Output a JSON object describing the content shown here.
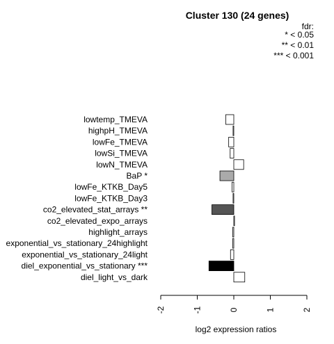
{
  "chart_data": {
    "type": "bar",
    "orientation": "horizontal",
    "title": "Cluster 130 (24 genes)",
    "xlabel": "log2 expression ratios",
    "ylabel": "",
    "xlim": [
      -2,
      2
    ],
    "xticks": [
      "-2",
      "-1",
      "0",
      "1",
      "2"
    ],
    "legend": {
      "title": "fdr:",
      "entries": [
        "* < 0.05",
        "** < 0.01",
        "*** < 0.001"
      ],
      "position": "top-right"
    },
    "categories": [
      "lowtemp_TMEVA",
      "highpH_TMEVA",
      "lowFe_TMEVA",
      "lowSi_TMEVA",
      "lowN_TMEVA",
      "BaP *",
      "lowFe_KTKB_Day5",
      "lowFe_KTKB_Day3",
      "co2_elevated_stat_arrays **",
      "co2_elevated_expo_arrays",
      "highlight_arrays",
      "exponential_vs_stationary_24highlight",
      "exponential_vs_stationary_24light",
      "diel_exponential_vs_stationary ***",
      "diel_light_vs_dark"
    ],
    "values": [
      -0.22,
      -0.02,
      -0.14,
      -0.1,
      0.27,
      -0.38,
      -0.05,
      -0.02,
      -0.6,
      0.02,
      -0.03,
      -0.03,
      -0.09,
      -0.68,
      0.3
    ],
    "fills": [
      "#ffffff",
      "#ffffff",
      "#ffffff",
      "#ffffff",
      "#ffffff",
      "#aaaaaa",
      "#ffffff",
      "#ffffff",
      "#555555",
      "#ffffff",
      "#ffffff",
      "#ffffff",
      "#ffffff",
      "#000000",
      "#ffffff"
    ]
  }
}
